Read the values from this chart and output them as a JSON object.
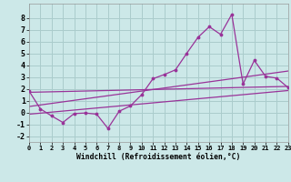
{
  "background_color": "#cce8e8",
  "grid_color": "#aacccc",
  "line_color": "#993399",
  "xlabel": "Windchill (Refroidissement éolien,°C)",
  "xlim": [
    0,
    23
  ],
  "ylim": [
    -2.5,
    9.2
  ],
  "xticks": [
    0,
    1,
    2,
    3,
    4,
    5,
    6,
    7,
    8,
    9,
    10,
    11,
    12,
    13,
    14,
    15,
    16,
    17,
    18,
    19,
    20,
    21,
    22,
    23
  ],
  "yticks": [
    -2,
    -1,
    0,
    1,
    2,
    3,
    4,
    5,
    6,
    7,
    8
  ],
  "main_x": [
    0,
    1,
    2,
    3,
    4,
    5,
    6,
    7,
    8,
    9,
    10,
    11,
    12,
    13,
    14,
    15,
    16,
    17,
    18,
    19,
    20,
    21,
    22,
    23
  ],
  "main_y": [
    1.8,
    0.3,
    -0.3,
    -0.85,
    -0.1,
    -0.05,
    -0.15,
    -1.35,
    0.1,
    0.55,
    1.5,
    2.85,
    3.2,
    3.6,
    5.0,
    6.35,
    7.25,
    6.6,
    8.3,
    2.4,
    4.4,
    3.05,
    2.9,
    2.1
  ],
  "line_upper_start": 1.7,
  "line_upper_end": 2.2,
  "line_mid_start": 0.5,
  "line_mid_end": 3.5,
  "line_lower_start": -0.15,
  "line_lower_end": 1.85
}
